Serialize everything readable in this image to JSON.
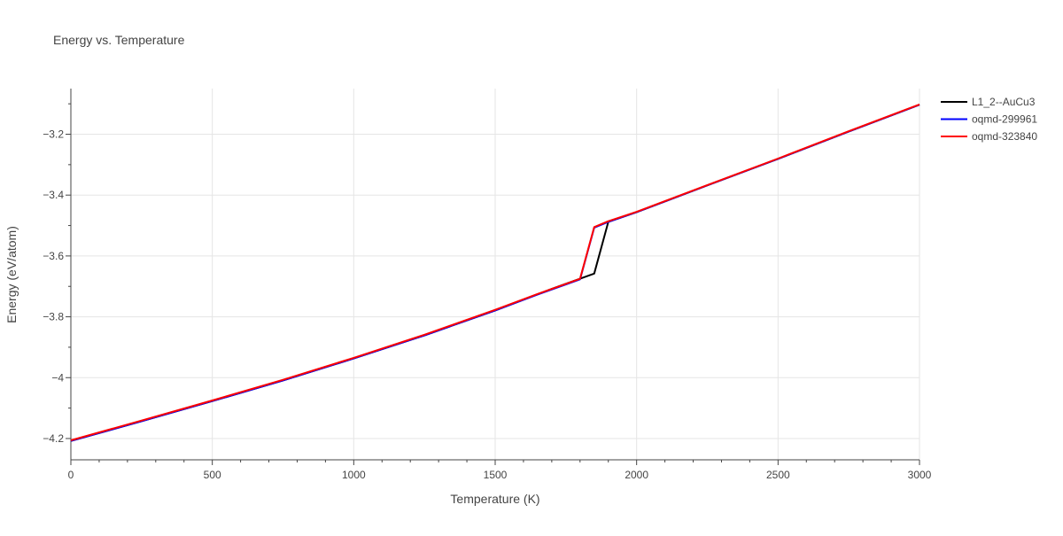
{
  "chart_data": {
    "type": "line",
    "title": "Energy vs. Temperature",
    "xlabel": "Temperature (K)",
    "ylabel": "Energy (eV/atom)",
    "xlim": [
      0,
      3000
    ],
    "ylim": [
      -4.27,
      -3.05
    ],
    "x_ticks": [
      0,
      500,
      1000,
      1500,
      2000,
      2500,
      3000
    ],
    "x_tick_labels": [
      "0",
      "500",
      "1000",
      "1500",
      "2000",
      "2500",
      "3000"
    ],
    "y_ticks": [
      -4.2,
      -4.0,
      -3.8,
      -3.6,
      -3.4,
      -3.2
    ],
    "y_tick_labels": [
      "−4.2",
      "−4",
      "−3.8",
      "−3.6",
      "−3.4",
      "−3.2"
    ],
    "grid": true,
    "legend_position": "top-right",
    "series": [
      {
        "name": "L1_2--AuCu3",
        "color": "#000000",
        "x": [
          0,
          250,
          500,
          750,
          1000,
          1250,
          1500,
          1700,
          1850,
          1900,
          2000,
          2250,
          2500,
          2750,
          3000
        ],
        "y": [
          -4.208,
          -4.143,
          -4.077,
          -4.009,
          -3.937,
          -3.861,
          -3.779,
          -3.708,
          -3.658,
          -3.488,
          -3.456,
          -3.368,
          -3.281,
          -3.191,
          -3.103
        ]
      },
      {
        "name": "oqmd-299961",
        "color": "#0000ff",
        "x": [
          0,
          250,
          500,
          750,
          1000,
          1250,
          1500,
          1650,
          1800,
          1850,
          1900,
          2000,
          2250,
          2500,
          2750,
          3000
        ],
        "y": [
          -4.208,
          -4.143,
          -4.077,
          -4.009,
          -3.937,
          -3.861,
          -3.779,
          -3.727,
          -3.677,
          -3.507,
          -3.488,
          -3.456,
          -3.368,
          -3.281,
          -3.191,
          -3.103
        ]
      },
      {
        "name": "oqmd-323840",
        "color": "#ff0000",
        "x": [
          0,
          250,
          500,
          750,
          1000,
          1250,
          1500,
          1650,
          1800,
          1850,
          1900,
          2000,
          2250,
          2500,
          2750,
          3000
        ],
        "y": [
          -4.206,
          -4.141,
          -4.075,
          -4.007,
          -3.935,
          -3.859,
          -3.777,
          -3.725,
          -3.675,
          -3.505,
          -3.486,
          -3.455,
          -3.367,
          -3.28,
          -3.19,
          -3.102
        ]
      }
    ]
  }
}
